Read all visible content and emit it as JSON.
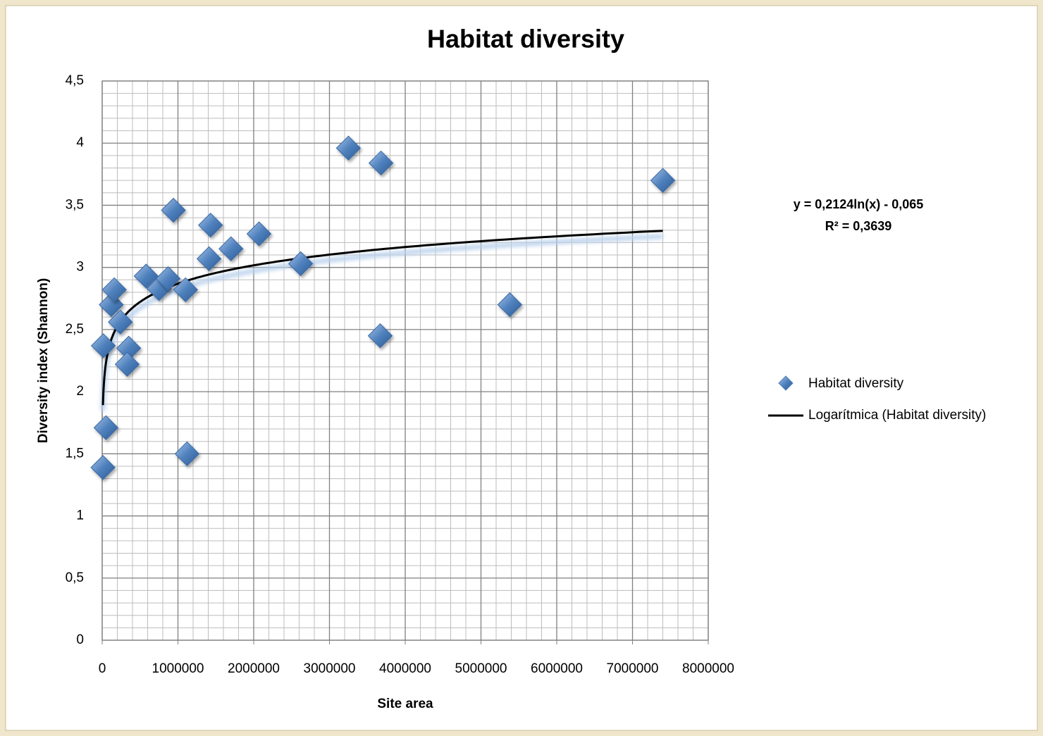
{
  "chart_data": {
    "type": "scatter",
    "title": "Habitat diversity",
    "x_label": "Site area",
    "y_label": "Diversity index (Shannon)",
    "xlim": [
      0,
      8000000
    ],
    "xticks": [
      0,
      1000000,
      2000000,
      3000000,
      4000000,
      5000000,
      6000000,
      7000000,
      8000000
    ],
    "ylim": [
      0,
      4.5
    ],
    "yticks": [
      0,
      {
        "value": 0.5,
        "label": "0,5"
      },
      1,
      {
        "value": 1.5,
        "label": "1,5"
      },
      2,
      {
        "value": 2.5,
        "label": "2,5"
      },
      3,
      {
        "value": 3.5,
        "label": "3,5"
      },
      4,
      {
        "value": 4.5,
        "label": "4,5"
      }
    ],
    "grid": true,
    "minor_grid": true,
    "legend": "right",
    "series": [
      {
        "name": "Habitat diversity",
        "color": "#4f81bd",
        "x": [
          15000,
          10000,
          50000,
          120000,
          160000,
          240000,
          350000,
          330000,
          580000,
          750000,
          870000,
          940000,
          1100000,
          1120000,
          1410000,
          1430000,
          1700000,
          2070000,
          2620000,
          3250000,
          3680000,
          3670000,
          5380000,
          7400000
        ],
        "values": [
          2.37,
          1.39,
          1.71,
          2.7,
          2.82,
          2.56,
          2.35,
          2.22,
          2.93,
          2.83,
          2.91,
          3.46,
          2.82,
          1.5,
          3.07,
          3.34,
          3.15,
          3.27,
          3.03,
          3.96,
          3.84,
          2.45,
          2.7,
          3.7
        ]
      }
    ],
    "trendline": {
      "name": "Logarítmica (Habitat diversity)",
      "kind": "log",
      "coefficients": [
        0.2124,
        -0.065
      ],
      "equation": "y = 0,2124ln(x) - 0,065",
      "r2_label": "R² = 0,3639",
      "color": "#000000"
    }
  }
}
